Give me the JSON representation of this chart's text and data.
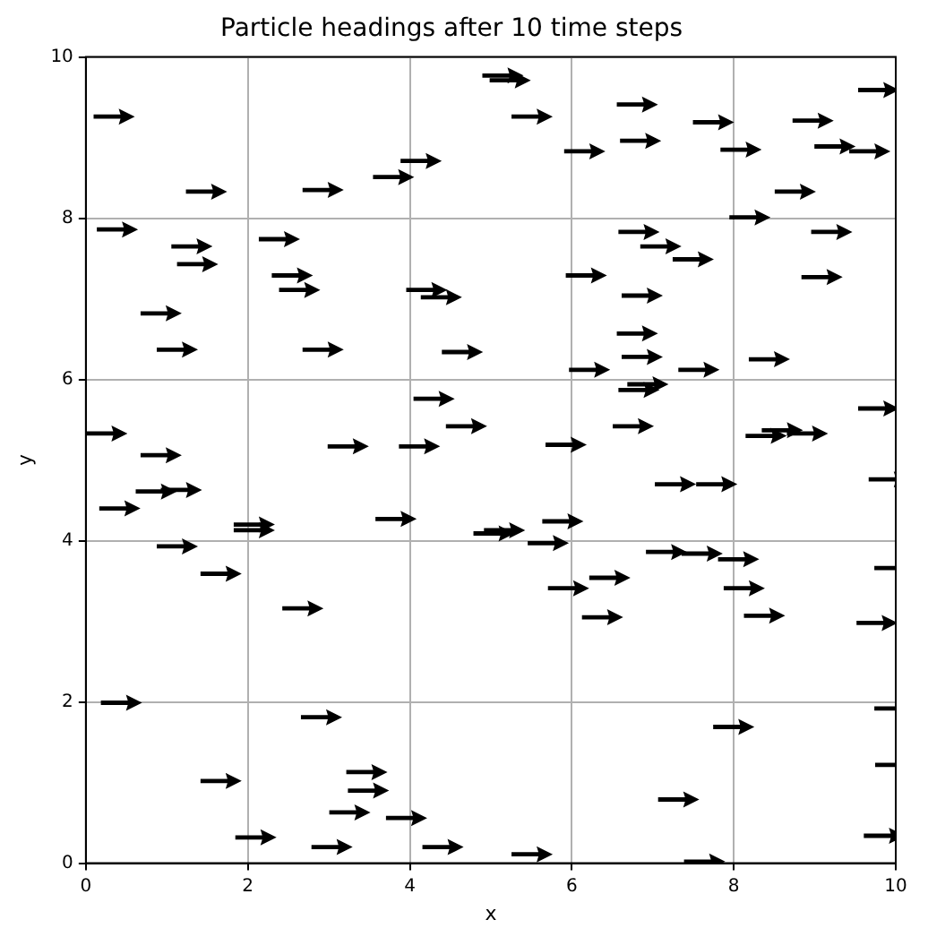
{
  "chart_data": {
    "type": "scatter",
    "title": "Particle headings after 10 time steps",
    "xlabel": "x",
    "ylabel": "y",
    "xlim": [
      0,
      10
    ],
    "ylim": [
      0,
      10
    ],
    "xticks": [
      0,
      2,
      4,
      6,
      8,
      10
    ],
    "yticks": [
      0,
      2,
      4,
      6,
      8,
      10
    ],
    "grid": true,
    "series": [
      {
        "color": "#000000",
        "x": [
          0.35,
          1.49,
          2.93,
          3.8,
          4.14,
          5.15,
          5.24,
          0.39,
          1.31,
          1.38,
          2.39,
          2.55,
          2.64,
          0.93,
          1.13,
          2.93,
          4.21,
          4.39,
          4.65,
          0.26,
          0.93,
          3.24,
          4.12,
          4.3,
          4.7,
          5.51,
          6.16,
          6.81,
          6.85,
          7.75,
          8.09,
          8.98,
          9.25,
          9.79,
          9.68,
          8.76,
          8.2,
          9.21,
          6.83,
          7.1,
          7.5,
          6.18,
          6.87,
          9.09,
          6.81,
          6.87,
          6.22,
          7.57,
          8.44,
          6.83,
          6.94,
          6.76,
          5.93,
          8.4,
          8.6,
          8.91,
          9.79,
          7.28,
          7.79,
          9.92,
          0.42,
          0.87,
          1.18,
          2.08,
          2.08,
          3.83,
          5.04,
          5.17,
          5.71,
          5.89,
          1.13,
          1.67,
          2.68,
          5.96,
          6.47,
          6.38,
          7.17,
          7.61,
          8.06,
          8.13,
          8.38,
          9.77,
          9.99,
          0.44,
          2.91,
          1.67,
          3.47,
          3.49,
          3.26,
          3.96,
          2.1,
          3.04,
          4.41,
          5.51,
          7.32,
          7.64,
          8.0,
          9.99,
          10.0,
          9.86
        ],
        "values": [
          9.26,
          8.33,
          8.35,
          8.51,
          8.71,
          9.77,
          9.71,
          7.86,
          7.65,
          7.43,
          7.74,
          7.29,
          7.11,
          6.82,
          6.37,
          6.37,
          7.11,
          7.02,
          6.34,
          5.33,
          5.06,
          5.17,
          5.17,
          5.76,
          5.42,
          9.26,
          8.83,
          9.41,
          8.96,
          9.19,
          8.85,
          9.21,
          8.89,
          9.59,
          8.83,
          8.33,
          8.01,
          7.83,
          7.83,
          7.65,
          7.49,
          7.29,
          7.04,
          7.27,
          6.57,
          6.28,
          6.12,
          6.12,
          6.25,
          5.87,
          5.94,
          5.42,
          5.19,
          5.3,
          5.37,
          5.33,
          5.64,
          4.7,
          4.7,
          4.76,
          4.4,
          4.61,
          4.63,
          4.2,
          4.13,
          4.27,
          4.09,
          4.13,
          3.97,
          4.24,
          3.93,
          3.59,
          3.16,
          3.41,
          3.54,
          3.05,
          3.86,
          3.84,
          3.77,
          3.41,
          3.07,
          2.98,
          3.66,
          1.99,
          1.81,
          1.02,
          1.13,
          0.9,
          0.63,
          0.56,
          0.32,
          0.2,
          0.2,
          0.11,
          0.79,
          0.02,
          1.69,
          1.92,
          1.22,
          0.34
        ]
      }
    ]
  }
}
